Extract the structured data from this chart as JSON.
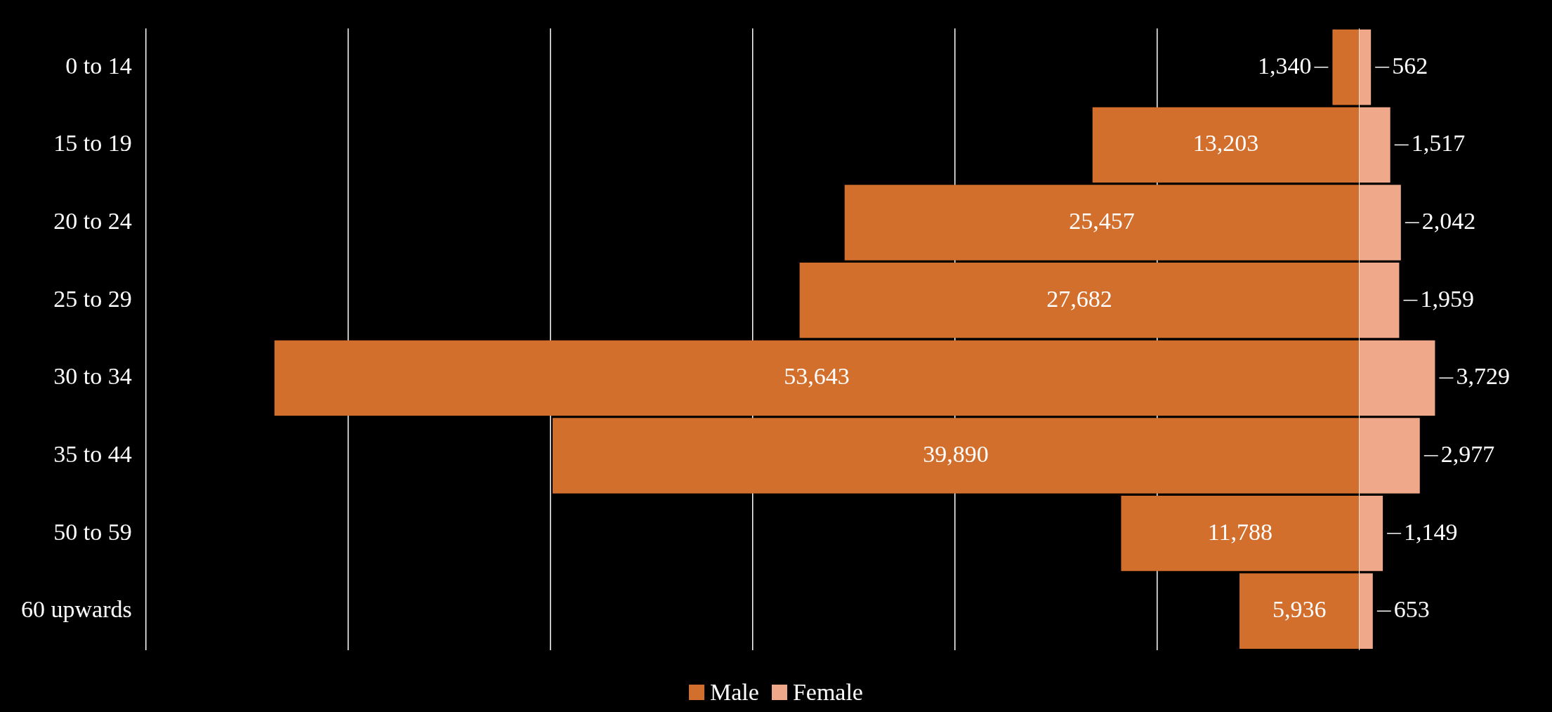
{
  "chart_data": [
    {
      "type": "bar",
      "orientation": "horizontal",
      "categories": [
        "0 to 14",
        "15 to 19",
        "20 to 24",
        "25 to 29",
        "30 to 34",
        "35 to 44",
        "50 to 59",
        "60 upwards"
      ],
      "series": [
        {
          "name": "Male",
          "color": "#d36f2d",
          "values": [
            1340,
            13203,
            25457,
            27682,
            53643,
            39890,
            11788,
            5936
          ],
          "value_labels": [
            "1,340",
            "13,203",
            "25,457",
            "27,682",
            "53,643",
            "39,890",
            "11,788",
            "5,936"
          ]
        }
      ],
      "xlim": [
        60000,
        0
      ],
      "xticks": [
        {
          "value": 60000,
          "label": null
        },
        {
          "value": 50000,
          "label": null
        },
        {
          "value": 40000,
          "label": null
        },
        {
          "value": 30000,
          "label": null
        },
        {
          "value": 20000,
          "label": null
        },
        {
          "value": 10000,
          "label": null
        },
        {
          "value": 0,
          "label": null
        }
      ],
      "grid": "x",
      "tick_labels": "y",
      "legend": "bottom"
    },
    {
      "type": "bar",
      "orientation": "horizontal",
      "categories": [
        null,
        null,
        null,
        null,
        null,
        null,
        null,
        null
      ],
      "series": [
        {
          "name": "Female",
          "color": "#f0a88a",
          "values": [
            562,
            1517,
            2042,
            1959,
            3729,
            2977,
            1149,
            653
          ],
          "value_labels": [
            "562",
            "1,517",
            "2,042",
            "1,959",
            "3,729",
            "2,977",
            "1,149",
            "653"
          ]
        }
      ],
      "tick_labels": false,
      "legend": "bottom"
    }
  ]
}
